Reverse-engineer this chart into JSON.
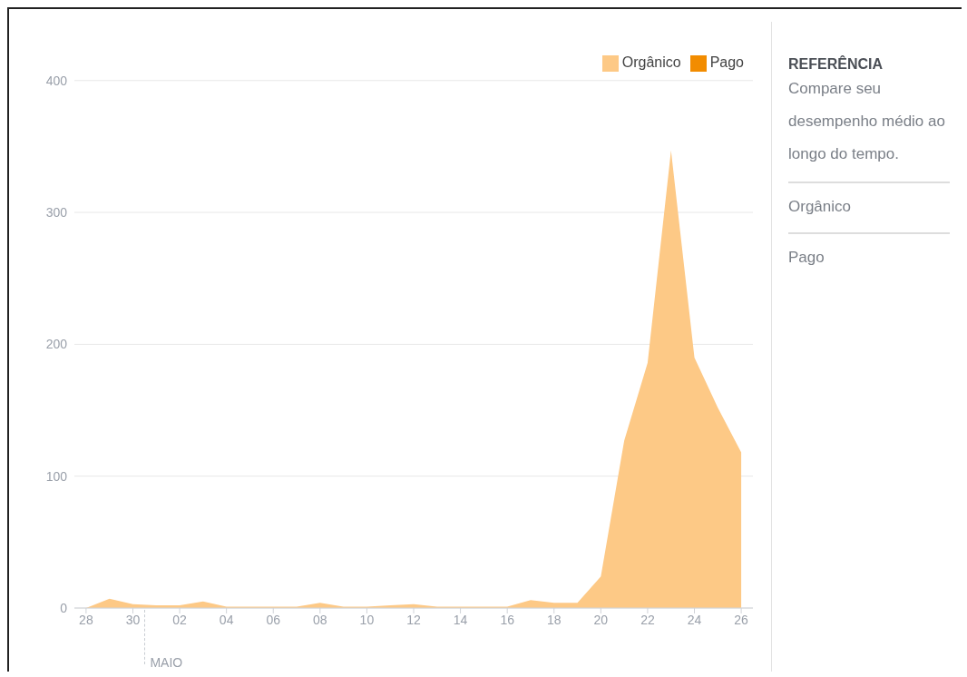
{
  "chart_data": {
    "type": "area",
    "categories": [
      "28",
      null,
      "30",
      null,
      "02",
      null,
      "04",
      null,
      "06",
      null,
      "08",
      null,
      "10",
      null,
      "12",
      null,
      "14",
      null,
      "16",
      null,
      "18",
      null,
      "20",
      null,
      "22",
      null,
      "24",
      null,
      "26"
    ],
    "series": [
      {
        "name": "Orgânico",
        "color": "#fdc986",
        "values": [
          0,
          7,
          3,
          2,
          2,
          5,
          1,
          1,
          1,
          1,
          4,
          1,
          1,
          2,
          3,
          1,
          1,
          1,
          1,
          6,
          4,
          4,
          24,
          127,
          186,
          347,
          190,
          152,
          118
        ]
      },
      {
        "name": "Pago",
        "color": "#f28c00",
        "values": [
          null,
          null,
          null,
          null,
          null,
          null,
          null,
          null,
          null,
          null,
          null,
          null,
          null,
          null,
          null,
          null,
          null,
          null,
          null,
          null,
          null,
          null,
          null,
          null,
          null,
          null,
          null,
          null,
          null
        ]
      }
    ],
    "ylim": [
      0,
      400
    ],
    "yticks": [
      0,
      100,
      200,
      300,
      400
    ],
    "grid": "y",
    "legend": "top right",
    "annotations": [
      "MAIO",
      "REFERÊNCIA",
      "Compare seu desempenho médio ao longo do tempo.",
      "Orgânico",
      "Pago"
    ]
  }
}
